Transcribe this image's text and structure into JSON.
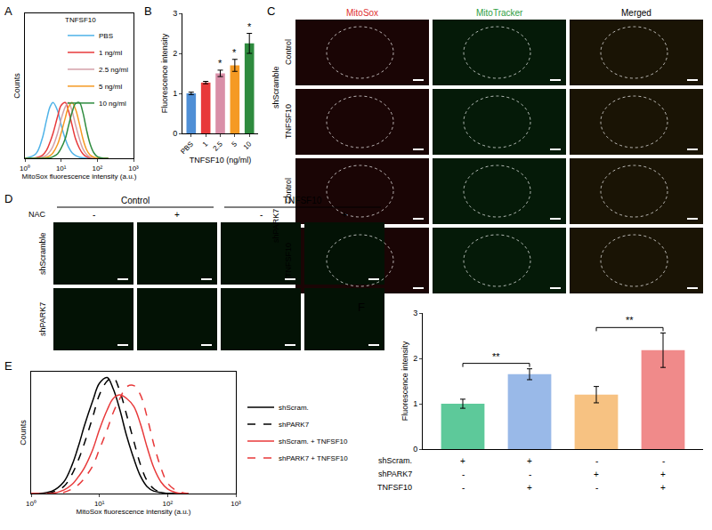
{
  "chart_data": [
    {
      "panel_label": "A",
      "type": "line",
      "x": [
        1,
        2,
        3,
        4,
        5,
        6,
        8,
        10,
        13,
        16,
        20,
        25,
        32,
        40,
        50,
        63,
        80,
        100,
        130,
        160,
        200
      ],
      "xlim": [
        1,
        1000
      ],
      "xticks": [
        {
          "value": 1,
          "label": "10⁰"
        },
        {
          "value": 10,
          "label": "10¹"
        },
        {
          "value": 100,
          "label": "10²"
        },
        {
          "value": 1000,
          "label": "10³"
        }
      ],
      "ylim": [
        0,
        2.6
      ],
      "tick_labels": "x",
      "x_label": "MitoSox fluorescence intensity (a.u.)",
      "y_label": "Counts",
      "legend": "upper right",
      "legend_title": "TNFSF10",
      "series": [
        {
          "name": "PBS",
          "color": "#4fb3e8",
          "line_style": "solid",
          "values": [
            0,
            0.08,
            0.35,
            0.7,
            0.93,
            1.0,
            0.85,
            0.6,
            0.35,
            0.2,
            0.1,
            0.05,
            0.02,
            0.01,
            0,
            0,
            0,
            0,
            0,
            0,
            0
          ]
        },
        {
          "name": "1 ng/ml",
          "color": "#e8393a",
          "line_style": "solid",
          "values": [
            0,
            0.01,
            0.05,
            0.15,
            0.3,
            0.45,
            0.75,
            0.95,
            1.0,
            0.85,
            0.6,
            0.35,
            0.18,
            0.08,
            0.03,
            0.01,
            0,
            0,
            0,
            0,
            0
          ]
        },
        {
          "name": "2.5 ng/ml",
          "color": "#d4a0a8",
          "line_style": "solid",
          "values": [
            0,
            0,
            0.02,
            0.06,
            0.13,
            0.22,
            0.45,
            0.7,
            0.92,
            1.0,
            0.85,
            0.6,
            0.35,
            0.17,
            0.07,
            0.02,
            0.01,
            0,
            0,
            0,
            0
          ]
        },
        {
          "name": "5 ng/ml",
          "color": "#f59a23",
          "line_style": "solid",
          "values": [
            0,
            0,
            0,
            0.02,
            0.05,
            0.1,
            0.25,
            0.45,
            0.72,
            0.92,
            1.0,
            0.88,
            0.62,
            0.35,
            0.16,
            0.06,
            0.02,
            0,
            0,
            0,
            0
          ]
        },
        {
          "name": "10 ng/ml",
          "color": "#2e8b3e",
          "line_style": "solid",
          "values": [
            0,
            0,
            0,
            0,
            0.01,
            0.03,
            0.08,
            0.18,
            0.35,
            0.58,
            0.82,
            0.98,
            1.0,
            0.82,
            0.52,
            0.26,
            0.1,
            0.03,
            0.01,
            0,
            0
          ]
        }
      ]
    },
    {
      "panel_label": "B",
      "type": "bar",
      "categories": [
        "PBS",
        "1",
        "2.5",
        "5",
        "10"
      ],
      "values": [
        1.0,
        1.27,
        1.5,
        1.7,
        2.25
      ],
      "errors": [
        0.03,
        0.03,
        0.08,
        0.15,
        0.25
      ],
      "colors": [
        "#4f8fd6",
        "#e8393a",
        "#d98fa8",
        "#f59a23",
        "#2e8b3e"
      ],
      "ylim": [
        0,
        3
      ],
      "yticks": [
        0,
        1,
        2,
        3
      ],
      "x_label": "TNFSF10 (ng/ml)",
      "y_label": "Fluorescence intensity",
      "significance_labels": [
        null,
        null,
        "*",
        "*",
        "*"
      ]
    },
    {
      "panel_label": "E",
      "type": "line",
      "x": [
        1,
        2,
        3,
        4,
        5,
        6,
        8,
        10,
        13,
        16,
        20,
        25,
        32,
        40,
        50,
        63,
        80,
        100,
        130,
        160,
        200
      ],
      "xlim": [
        1,
        1000
      ],
      "xticks": [
        {
          "value": 1,
          "label": "10⁰"
        },
        {
          "value": 10,
          "label": "10¹"
        },
        {
          "value": 100,
          "label": "10²"
        },
        {
          "value": 1000,
          "label": "10³"
        }
      ],
      "ylim": [
        0,
        1.05
      ],
      "tick_labels": "x",
      "x_label": "MitoSox fluorescence intensity (a.u.)",
      "y_label": "Counts",
      "legend": "right",
      "series": [
        {
          "name": "shScram.",
          "color": "#000000",
          "line_style": "solid",
          "values": [
            0,
            0.02,
            0.1,
            0.25,
            0.42,
            0.58,
            0.8,
            0.95,
            1.0,
            0.9,
            0.72,
            0.5,
            0.3,
            0.15,
            0.06,
            0.02,
            0.01,
            0,
            0,
            0,
            0
          ]
        },
        {
          "name": "shPARK7",
          "color": "#000000",
          "line_style": "dash",
          "values": [
            0,
            0.01,
            0.06,
            0.17,
            0.3,
            0.43,
            0.66,
            0.85,
            0.97,
            1.0,
            0.88,
            0.68,
            0.45,
            0.25,
            0.11,
            0.04,
            0.01,
            0,
            0,
            0,
            0
          ]
        },
        {
          "name": "shScram. + TNFSF10",
          "color": "#e8393a",
          "line_style": "solid",
          "values": [
            0,
            0,
            0.03,
            0.08,
            0.15,
            0.22,
            0.38,
            0.55,
            0.72,
            0.82,
            0.85,
            0.82,
            0.75,
            0.6,
            0.4,
            0.22,
            0.1,
            0.04,
            0.01,
            0,
            0
          ]
        },
        {
          "name": "shPARK7 + TNFSF10",
          "color": "#e8393a",
          "line_style": "dash",
          "values": [
            0,
            0,
            0.01,
            0.04,
            0.08,
            0.13,
            0.24,
            0.38,
            0.55,
            0.7,
            0.82,
            0.92,
            0.93,
            0.85,
            0.66,
            0.42,
            0.22,
            0.09,
            0.03,
            0.01,
            0
          ]
        }
      ]
    },
    {
      "panel_label": "F",
      "type": "bar",
      "categories": [
        null,
        null,
        null,
        null
      ],
      "values": [
        1.0,
        1.65,
        1.2,
        2.18
      ],
      "errors": [
        0.1,
        0.12,
        0.18,
        0.38
      ],
      "colors": [
        "#5dc99a",
        "#99b9e8",
        "#f7c282",
        "#f08a8a"
      ],
      "ylim": [
        0,
        3
      ],
      "yticks": [
        0,
        1,
        2,
        3
      ],
      "y_label": "Fluorescence intensity",
      "tick_labels": "y",
      "condition_table": [
        {
          "label": "shScram.",
          "cells": [
            "+",
            "+",
            "-",
            "-"
          ]
        },
        {
          "label": "shPARK7",
          "cells": [
            "-",
            "-",
            "+",
            "+"
          ]
        },
        {
          "label": "TNFSF10",
          "cells": [
            "-",
            "+",
            "-",
            "+"
          ]
        }
      ],
      "significance": [
        {
          "pair": [
            0,
            1
          ],
          "label": "**"
        },
        {
          "pair": [
            2,
            3
          ],
          "label": "**"
        }
      ]
    }
  ],
  "image_panels": [
    {
      "panel_label": "C",
      "column_headers": [
        "MitoSox",
        "MitoTracker",
        "Merged"
      ],
      "colors": [
        "#e03030",
        "#2ea043",
        "#000000"
      ],
      "row_groups": [
        {
          "label": "shScramble",
          "rows": [
            "Control",
            "TNFSF10"
          ]
        },
        {
          "label": "shPARK7",
          "rows": [
            "Control",
            "TNFSF10"
          ]
        }
      ]
    },
    {
      "panel_label": "D",
      "column_groups": [
        {
          "label": "Control",
          "columns": [
            "-",
            "+"
          ]
        },
        {
          "label": "TNFSF10",
          "columns": [
            "-",
            "+"
          ]
        }
      ],
      "column_row_label": "NAC",
      "rows": [
        "shScramble",
        "shPARK7"
      ]
    }
  ]
}
